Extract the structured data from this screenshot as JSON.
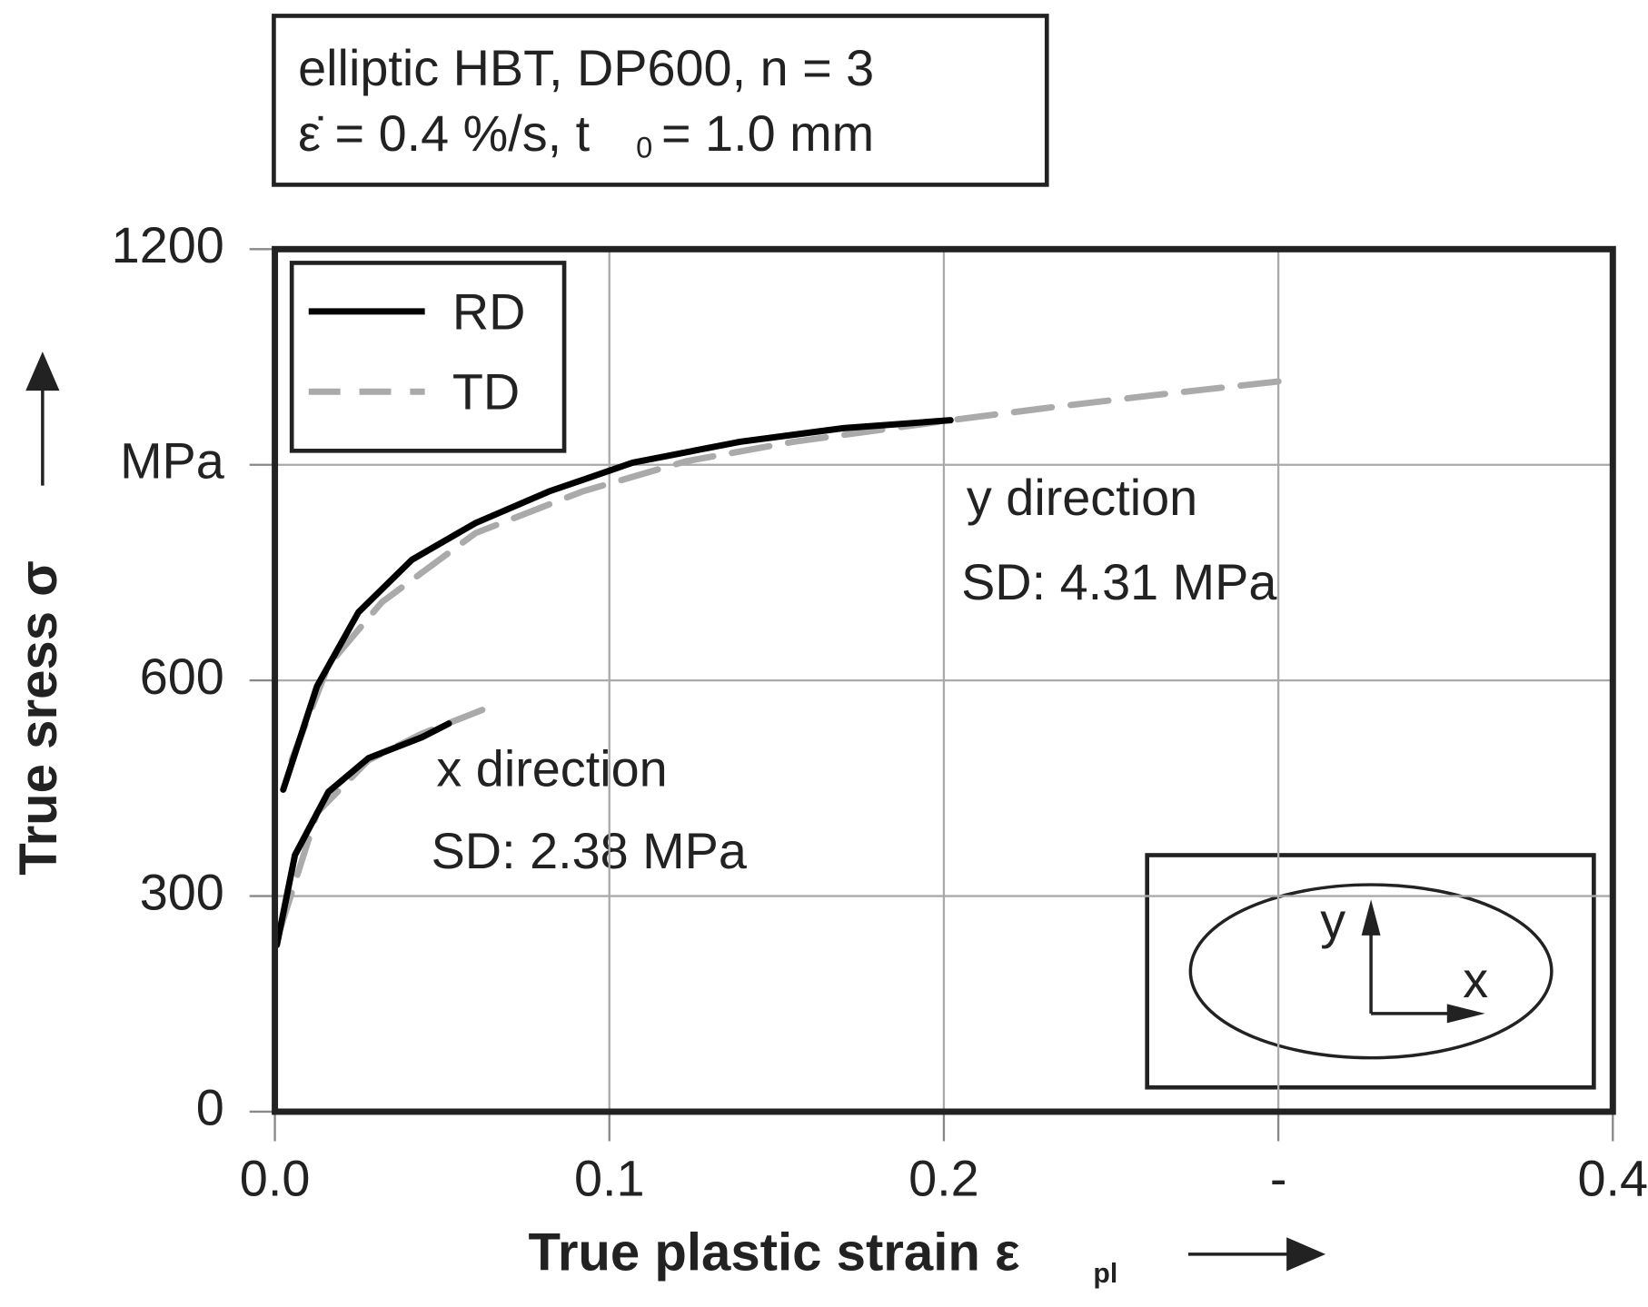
{
  "chart_data": {
    "type": "line",
    "title_lines": [
      "elliptic HBT, DP600, n = 3",
      "ε̇ = 0.4 %/s, t",
      "0",
      "= 1.0 mm"
    ],
    "x_label": "True plastic strain ε",
    "x_label_sub": "pl",
    "y_label": "True sress σ",
    "xlim": [
      0,
      0.4
    ],
    "xticks": [
      {
        "value": 0,
        "label": "0.0"
      },
      0.1,
      0.2,
      {
        "value": 0.3,
        "label": "-"
      },
      0.4
    ],
    "ylim": [
      0,
      1200
    ],
    "yticks": [
      0,
      300,
      600,
      {
        "value": 900,
        "label": "MPa"
      },
      1200
    ],
    "grid": true,
    "series": [
      {
        "name": "TD",
        "color": "#aaaaaa",
        "dashed": true,
        "curves": [
          {
            "x": [
              0.005,
              0.016,
              0.032,
              0.06,
              0.092,
              0.123,
              0.155,
              0.202,
              0.234,
              0.265,
              0.304
            ],
            "values": [
              489,
              621,
              709,
              805,
              863,
              905,
              932,
              962,
              981,
              998,
              1018
            ]
          },
          {
            "x": [
              0.0016,
              0.0126,
              0.028,
              0.044,
              0.062
            ],
            "values": [
              254,
              416,
              489,
              526,
              559
            ]
          }
        ]
      },
      {
        "name": "RD",
        "color": "#000000",
        "dashed": false,
        "curves": [
          {
            "x": [
              0.0025,
              0.0126,
              0.025,
              0.041,
              0.06,
              0.082,
              0.107,
              0.139,
              0.17,
              0.202
            ],
            "values": [
              448,
              592,
              695,
              768,
              819,
              863,
              903,
              932,
              951,
              962
            ]
          },
          {
            "x": [
              0.0006,
              0.006,
              0.016,
              0.028,
              0.044,
              0.052
            ],
            "values": [
              232,
              357,
              445,
              492,
              521,
              540
            ]
          }
        ]
      }
    ],
    "annotations": [
      "y direction",
      "SD: 4.31 MPa",
      "x direction",
      "SD: 2.38 MPa"
    ],
    "inset_labels": [
      "y",
      "x"
    ]
  }
}
